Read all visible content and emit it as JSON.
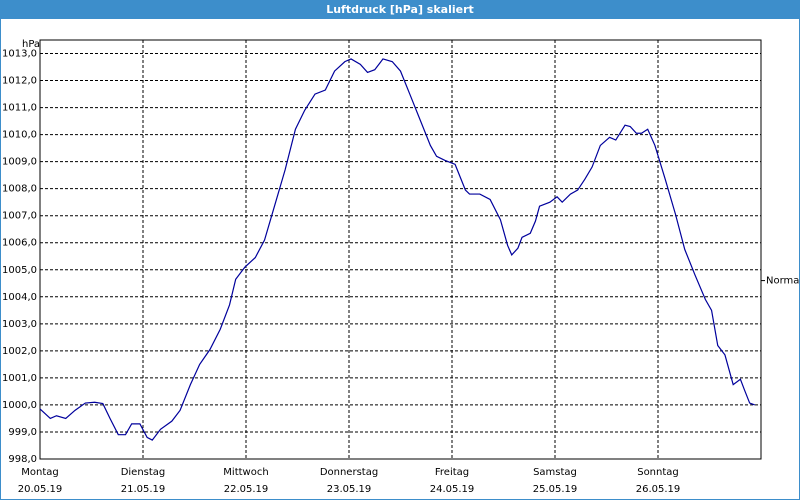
{
  "chart_data": {
    "type": "line",
    "title": "Luftdruck [hPa] skaliert",
    "y_label": "hPa",
    "annotation": {
      "text": "Normal",
      "value": 1004.6
    },
    "color": "#00009c",
    "grid": true,
    "xlim": [
      0,
      7
    ],
    "xticks": [
      {
        "value": 0,
        "label": "Montag"
      },
      {
        "value": 1,
        "label": "Dienstag"
      },
      {
        "value": 2,
        "label": "Mittwoch"
      },
      {
        "value": 3,
        "label": "Donnerstag"
      },
      {
        "value": 4,
        "label": "Freitag"
      },
      {
        "value": 5,
        "label": "Samstag"
      },
      {
        "value": 6,
        "label": "Sonntag"
      }
    ],
    "xtick_dates": [
      "20.05.19",
      "21.05.19",
      "22.05.19",
      "23.05.19",
      "24.05.19",
      "25.05.19",
      "26.05.19"
    ],
    "ylim": [
      998,
      1013.5
    ],
    "yticks": [
      {
        "value": 998,
        "label": "998,0"
      },
      {
        "value": 999,
        "label": "999,0"
      },
      {
        "value": 1000,
        "label": "1000,0"
      },
      {
        "value": 1001,
        "label": "1001,0"
      },
      {
        "value": 1002,
        "label": "1002,0"
      },
      {
        "value": 1003,
        "label": "1003,0"
      },
      {
        "value": 1004,
        "label": "1004,0"
      },
      {
        "value": 1005,
        "label": "1005,0"
      },
      {
        "value": 1006,
        "label": "1006,0"
      },
      {
        "value": 1007,
        "label": "1007,0"
      },
      {
        "value": 1008,
        "label": "1008,0"
      },
      {
        "value": 1009,
        "label": "1009,0"
      },
      {
        "value": 1010,
        "label": "1010,0"
      },
      {
        "value": 1011,
        "label": "1011,0"
      },
      {
        "value": 1012,
        "label": "1012,0"
      },
      {
        "value": 1013,
        "label": "1013,0"
      }
    ],
    "x": [
      0,
      0.1,
      0.16,
      0.25,
      0.34,
      0.44,
      0.53,
      0.61,
      0.68,
      0.76,
      0.83,
      0.89,
      0.97,
      1.04,
      1.09,
      1.17,
      1.28,
      1.36,
      1.46,
      1.55,
      1.65,
      1.75,
      1.84,
      1.9,
      1.99,
      2.09,
      2.18,
      2.28,
      2.38,
      2.48,
      2.57,
      2.67,
      2.77,
      2.86,
      2.96,
      3.02,
      3.11,
      3.18,
      3.25,
      3.33,
      3.42,
      3.5,
      3.59,
      3.69,
      3.79,
      3.85,
      3.93,
      4.03,
      4.13,
      4.17,
      4.27,
      4.37,
      4.47,
      4.54,
      4.58,
      4.64,
      4.68,
      4.76,
      4.81,
      4.85,
      4.95,
      5.02,
      5.07,
      5.15,
      5.22,
      5.29,
      5.36,
      5.44,
      5.53,
      5.59,
      5.68,
      5.73,
      5.79,
      5.84,
      5.9,
      5.97,
      6.07,
      6.17,
      6.26,
      6.36,
      6.46,
      6.52,
      6.58,
      6.65,
      6.73,
      6.8,
      6.84,
      6.89,
      6.94
    ],
    "values": [
      999.85,
      999.5,
      999.6,
      999.5,
      999.8,
      1000.07,
      1000.1,
      1000.05,
      999.5,
      998.9,
      998.9,
      999.3,
      999.3,
      998.8,
      998.7,
      999.1,
      999.4,
      999.8,
      1000.75,
      1001.5,
      1002.05,
      1002.8,
      1003.7,
      1004.65,
      1005.1,
      1005.45,
      1006.1,
      1007.4,
      1008.7,
      1010.2,
      1010.9,
      1011.5,
      1011.65,
      1012.35,
      1012.7,
      1012.8,
      1012.6,
      1012.3,
      1012.4,
      1012.8,
      1012.7,
      1012.35,
      1011.5,
      1010.55,
      1009.6,
      1009.2,
      1009.05,
      1008.9,
      1007.95,
      1007.8,
      1007.8,
      1007.6,
      1006.85,
      1005.9,
      1005.55,
      1005.8,
      1006.2,
      1006.35,
      1006.8,
      1007.35,
      1007.5,
      1007.7,
      1007.5,
      1007.8,
      1007.95,
      1008.35,
      1008.8,
      1009.6,
      1009.9,
      1009.8,
      1010.35,
      1010.3,
      1010.05,
      1010.05,
      1010.2,
      1009.6,
      1008.35,
      1007.05,
      1005.75,
      1004.8,
      1003.9,
      1003.5,
      1002.2,
      1001.85,
      1000.75,
      1000.95,
      1000.55,
      1000.07,
      1000.0
    ]
  }
}
